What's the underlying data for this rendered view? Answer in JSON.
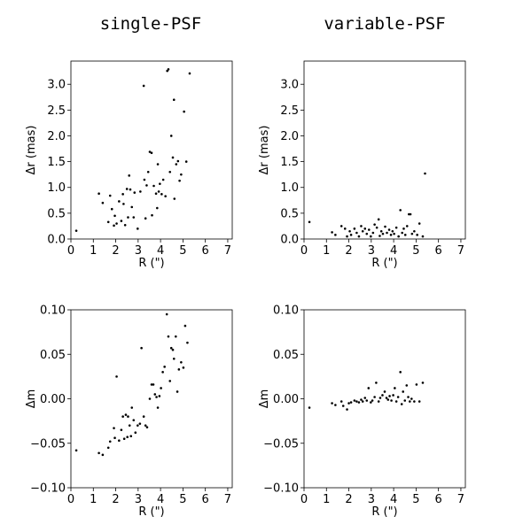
{
  "columns": [
    {
      "title": "single-PSF"
    },
    {
      "title": "variable-PSF"
    }
  ],
  "chart_data": [
    {
      "type": "scatter",
      "title": "single-PSF",
      "xlabel": "R (\")",
      "ylabel": "Δr (mas)",
      "xlim": [
        0,
        7.2
      ],
      "ylim": [
        0,
        3.45
      ],
      "xticks": [
        0,
        1,
        2,
        3,
        4,
        5,
        6,
        7
      ],
      "yticks": [
        0.0,
        0.5,
        1.0,
        1.5,
        2.0,
        2.5,
        3.0
      ],
      "ytick_labels": [
        "0.0",
        "0.5",
        "1.0",
        "1.5",
        "2.0",
        "2.5",
        "3.0"
      ],
      "grid": false,
      "x": [
        0.24,
        1.25,
        1.42,
        1.67,
        1.75,
        1.83,
        1.92,
        1.96,
        2.04,
        2.15,
        2.25,
        2.32,
        2.35,
        2.42,
        2.5,
        2.55,
        2.6,
        2.65,
        2.72,
        2.8,
        2.84,
        2.98,
        3.1,
        3.25,
        3.28,
        3.33,
        3.38,
        3.45,
        3.52,
        3.6,
        3.62,
        3.7,
        3.8,
        3.85,
        3.88,
        3.92,
        3.97,
        4.05,
        4.12,
        4.22,
        4.3,
        4.35,
        4.42,
        4.48,
        4.55,
        4.6,
        4.62,
        4.7,
        4.78,
        4.85,
        4.92,
        5.05,
        5.15,
        5.3
      ],
      "y": [
        0.16,
        0.88,
        0.7,
        0.33,
        0.84,
        0.58,
        0.26,
        0.45,
        0.3,
        0.73,
        0.35,
        0.87,
        0.68,
        0.27,
        0.97,
        0.42,
        1.23,
        0.96,
        0.62,
        0.42,
        0.9,
        0.2,
        0.92,
        2.97,
        1.15,
        0.4,
        1.04,
        1.3,
        1.69,
        1.67,
        0.46,
        1.03,
        0.88,
        0.6,
        1.45,
        0.92,
        1.07,
        0.87,
        1.15,
        0.83,
        3.26,
        3.29,
        1.3,
        2.0,
        1.58,
        2.7,
        0.78,
        1.45,
        1.51,
        1.13,
        1.25,
        2.47,
        1.5,
        3.21
      ]
    },
    {
      "type": "scatter",
      "title": "variable-PSF",
      "xlabel": "R (\")",
      "ylabel": "Δr (mas)",
      "xlim": [
        0,
        7.2
      ],
      "ylim": [
        0,
        3.45
      ],
      "xticks": [
        0,
        1,
        2,
        3,
        4,
        5,
        6,
        7
      ],
      "yticks": [
        0.0,
        0.5,
        1.0,
        1.5,
        2.0,
        2.5,
        3.0
      ],
      "ytick_labels": [
        "0.0",
        "0.5",
        "1.0",
        "1.5",
        "2.0",
        "2.5",
        "3.0"
      ],
      "grid": false,
      "x": [
        0.24,
        1.25,
        1.4,
        1.67,
        1.83,
        1.92,
        2.04,
        2.1,
        2.25,
        2.35,
        2.45,
        2.55,
        2.62,
        2.72,
        2.8,
        2.9,
        2.98,
        3.08,
        3.15,
        3.25,
        3.33,
        3.38,
        3.45,
        3.52,
        3.62,
        3.7,
        3.8,
        3.88,
        3.95,
        4.02,
        4.12,
        4.22,
        4.3,
        4.38,
        4.45,
        4.52,
        4.6,
        4.68,
        4.75,
        4.82,
        4.92,
        5.05,
        5.15,
        5.3,
        5.4
      ],
      "y": [
        0.33,
        0.13,
        0.08,
        0.25,
        0.2,
        0.05,
        0.15,
        0.08,
        0.2,
        0.12,
        0.05,
        0.25,
        0.15,
        0.2,
        0.1,
        0.18,
        0.05,
        0.12,
        0.28,
        0.22,
        0.38,
        0.06,
        0.15,
        0.1,
        0.24,
        0.12,
        0.18,
        0.08,
        0.15,
        0.1,
        0.22,
        0.05,
        0.56,
        0.12,
        0.2,
        0.08,
        0.25,
        0.48,
        0.48,
        0.1,
        0.15,
        0.08,
        0.3,
        0.05,
        1.27
      ]
    },
    {
      "type": "scatter",
      "title": "single-PSF",
      "xlabel": "R (\")",
      "ylabel": "Δm",
      "xlim": [
        0,
        7.2
      ],
      "ylim": [
        -0.1,
        0.1
      ],
      "xticks": [
        0,
        1,
        2,
        3,
        4,
        5,
        6,
        7
      ],
      "yticks": [
        -0.1,
        -0.05,
        0.0,
        0.05,
        0.1
      ],
      "ytick_labels": [
        "−0.10",
        "−0.05",
        "0.00",
        "0.05",
        "0.10"
      ],
      "grid": false,
      "x": [
        0.24,
        1.25,
        1.42,
        1.67,
        1.75,
        1.92,
        1.96,
        2.04,
        2.15,
        2.25,
        2.32,
        2.38,
        2.45,
        2.52,
        2.55,
        2.62,
        2.68,
        2.72,
        2.8,
        2.88,
        2.98,
        3.08,
        3.15,
        3.25,
        3.33,
        3.4,
        3.52,
        3.6,
        3.68,
        3.75,
        3.82,
        3.88,
        3.95,
        4.02,
        4.1,
        4.18,
        4.28,
        4.35,
        4.42,
        4.48,
        4.55,
        4.6,
        4.68,
        4.75,
        4.82,
        4.92,
        5.02,
        5.1,
        5.2
      ],
      "y": [
        -0.058,
        -0.061,
        -0.063,
        -0.055,
        -0.048,
        -0.033,
        -0.044,
        0.025,
        -0.047,
        -0.035,
        -0.02,
        -0.045,
        -0.018,
        -0.043,
        -0.02,
        -0.03,
        -0.042,
        -0.01,
        -0.024,
        -0.038,
        -0.03,
        -0.028,
        0.057,
        -0.02,
        -0.03,
        -0.032,
        0.0,
        0.016,
        0.016,
        0.005,
        0.002,
        -0.01,
        0.003,
        0.012,
        0.03,
        0.036,
        0.095,
        0.07,
        0.02,
        0.057,
        0.055,
        0.045,
        0.07,
        0.008,
        0.033,
        0.041,
        0.035,
        0.082,
        0.063
      ]
    },
    {
      "type": "scatter",
      "title": "variable-PSF",
      "xlabel": "R (\")",
      "ylabel": "Δm",
      "xlim": [
        0,
        7.2
      ],
      "ylim": [
        -0.1,
        0.1
      ],
      "xticks": [
        0,
        1,
        2,
        3,
        4,
        5,
        6,
        7
      ],
      "yticks": [
        -0.1,
        -0.05,
        0.0,
        0.05,
        0.1
      ],
      "ytick_labels": [
        "−0.10",
        "−0.05",
        "0.00",
        "0.05",
        "0.10"
      ],
      "grid": false,
      "x": [
        0.24,
        1.25,
        1.4,
        1.67,
        1.75,
        1.92,
        2.0,
        2.1,
        2.25,
        2.35,
        2.45,
        2.55,
        2.62,
        2.72,
        2.8,
        2.88,
        2.98,
        3.05,
        3.15,
        3.22,
        3.33,
        3.4,
        3.5,
        3.6,
        3.68,
        3.75,
        3.82,
        3.9,
        3.98,
        4.05,
        4.12,
        4.2,
        4.3,
        4.36,
        4.42,
        4.5,
        4.58,
        4.65,
        4.72,
        4.8,
        4.92,
        5.02,
        5.15,
        5.3
      ],
      "y": [
        -0.01,
        -0.005,
        -0.007,
        -0.003,
        -0.008,
        -0.012,
        -0.005,
        -0.004,
        -0.002,
        -0.003,
        -0.004,
        -0.001,
        -0.003,
        0.001,
        -0.002,
        0.012,
        -0.004,
        -0.002,
        0.002,
        0.018,
        -0.003,
        0.001,
        0.004,
        0.008,
        0.001,
        -0.001,
        0.003,
        -0.002,
        0.004,
        0.012,
        -0.003,
        0.002,
        0.03,
        -0.006,
        0.008,
        -0.002,
        0.015,
        0.002,
        -0.003,
        0.0,
        -0.003,
        0.016,
        -0.003,
        0.018
      ]
    }
  ]
}
